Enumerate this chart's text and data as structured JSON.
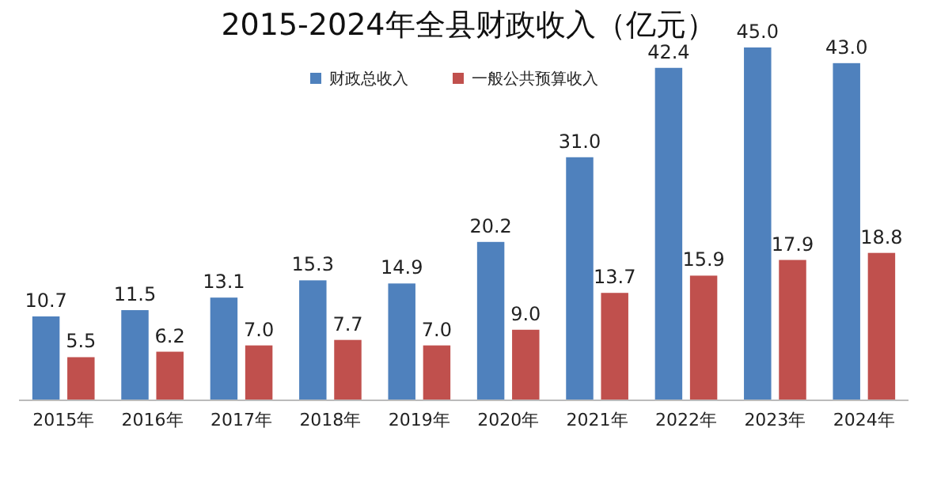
{
  "chart_data": {
    "type": "bar",
    "title": "2015-2024年全县财政收入（亿元）",
    "categories": [
      "2015年",
      "2016年",
      "2017年",
      "2018年",
      "2019年",
      "2020年",
      "2021年",
      "2022年",
      "2023年",
      "2024年"
    ],
    "series": [
      {
        "name": "财政总收入",
        "color": "#4f81bd",
        "values": [
          10.7,
          11.5,
          13.1,
          15.3,
          14.9,
          20.2,
          31.0,
          42.4,
          45.0,
          43.0
        ],
        "value_labels": [
          "10.7",
          "11.5",
          "13.1",
          "15.3",
          "14.9",
          "20.2",
          "31.0",
          "42.4",
          "45.0",
          "43.0"
        ]
      },
      {
        "name": "一般公共预算收入",
        "color": "#c0504d",
        "values": [
          5.5,
          6.2,
          7.0,
          7.7,
          7.0,
          9.0,
          13.7,
          15.9,
          17.9,
          18.8
        ],
        "value_labels": [
          "5.5",
          "6.2",
          "7.0",
          "7.7",
          "7.0",
          "9.0",
          "13.7",
          "15.9",
          "17.9",
          "18.8"
        ]
      }
    ],
    "legend": "top"
  }
}
